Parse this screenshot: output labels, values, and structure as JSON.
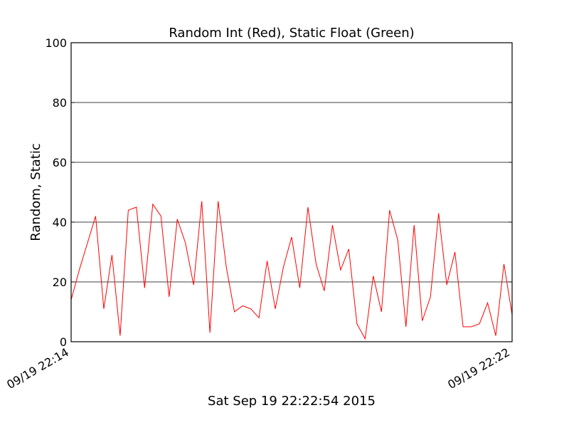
{
  "chart_data": {
    "type": "line",
    "title": "Random Int (Red), Static Float (Green)",
    "xlabel": "Sat Sep 19 22:22:54 2015",
    "ylabel": "Random, Static",
    "ylim": [
      0,
      100
    ],
    "yticks": [
      0,
      20,
      40,
      60,
      80,
      100
    ],
    "xtick_labels": [
      "09/19 22:14",
      "09/19 22:22"
    ],
    "grid": "horizontal",
    "series": [
      {
        "color": "#ff0000",
        "values": [
          14,
          24,
          33,
          42,
          11,
          29,
          2,
          44,
          45,
          18,
          46,
          42,
          15,
          41,
          33,
          19,
          47,
          3,
          47,
          25,
          10,
          12,
          11,
          8,
          27,
          11,
          25,
          35,
          18,
          45,
          26,
          17,
          39,
          24,
          31,
          6,
          1,
          22,
          10,
          44,
          34,
          5,
          39,
          7,
          15,
          43,
          19,
          30,
          5,
          5,
          6,
          13,
          2,
          26,
          9
        ]
      }
    ]
  }
}
